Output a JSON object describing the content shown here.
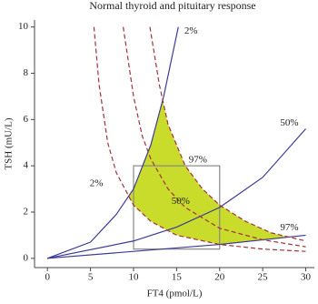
{
  "chart_data": {
    "type": "line",
    "title": "Normal thyroid and pituitary response",
    "x_label": "FT4 (pmol/L)",
    "y_label": "TSH (mU/L)",
    "xlim": [
      -1.5,
      31
    ],
    "ylim": [
      -0.4,
      10.3
    ],
    "xticks": [
      0,
      5,
      10,
      15,
      20,
      25,
      30
    ],
    "yticks": [
      0,
      2,
      4,
      6,
      8,
      10
    ],
    "series": [
      {
        "name": "2%",
        "color": "#3b3b96",
        "dash": false,
        "x": [
          0,
          5,
          8,
          10,
          12,
          13.5,
          15.2
        ],
        "y": [
          0,
          0.7,
          1.9,
          3.0,
          4.9,
          7.0,
          10
        ]
      },
      {
        "name": "50%",
        "color": "#3b3b96",
        "dash": false,
        "x": [
          0,
          10,
          15,
          20,
          25,
          30
        ],
        "y": [
          0,
          0.75,
          1.35,
          2.2,
          3.5,
          5.6
        ]
      },
      {
        "name": "97%",
        "color": "#3b3b96",
        "dash": false,
        "x": [
          0,
          10,
          20,
          30
        ],
        "y": [
          0,
          0.3,
          0.6,
          1.0
        ]
      },
      {
        "name": "2%",
        "color": "#a3303c",
        "dash": true,
        "x": [
          5.4,
          6,
          7,
          8,
          10,
          12,
          15,
          20,
          25,
          30
        ],
        "y": [
          10,
          7.5,
          5,
          3.7,
          2.3,
          1.6,
          1.0,
          0.6,
          0.4,
          0.3
        ]
      },
      {
        "name": "50%",
        "color": "#a3303c",
        "dash": true,
        "x": [
          8.8,
          10,
          11,
          12,
          14,
          16,
          20,
          25,
          30
        ],
        "y": [
          10,
          7,
          5.3,
          4.3,
          3.0,
          2.2,
          1.3,
          0.8,
          0.5
        ]
      },
      {
        "name": "97%",
        "color": "#a3303c",
        "dash": true,
        "x": [
          11.9,
          13,
          14,
          16,
          18,
          20,
          23,
          26,
          30
        ],
        "y": [
          10,
          7.5,
          5.8,
          4.0,
          3.0,
          2.3,
          1.6,
          1.1,
          0.75
        ]
      }
    ],
    "band_color": "#c9dc2c",
    "reference_box": {
      "x": [
        10,
        20
      ],
      "y": [
        0.4,
        4
      ],
      "color": "#888888"
    }
  }
}
